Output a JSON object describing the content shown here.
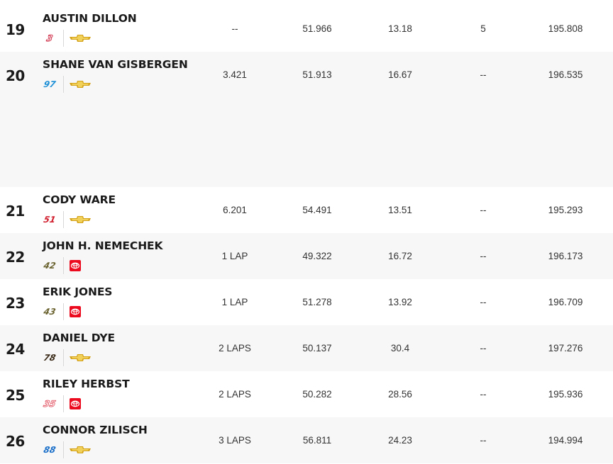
{
  "colors": {
    "alt_row": "#f7f7f7",
    "chevrolet": "#d4a21a",
    "toyota": "#eb0a1e"
  },
  "rows_top": [
    {
      "pos": "19",
      "driver": "AUSTIN DILLON",
      "car": "3",
      "car_color": "#c8102e",
      "car_outline": true,
      "mfr": "chevrolet-icon",
      "interval": "--",
      "lap_time": "51.966",
      "c3": "13.18",
      "c4": "5",
      "speed": "195.808",
      "alt": false
    },
    {
      "pos": "20",
      "driver": "SHANE VAN GISBERGEN",
      "car": "97",
      "car_color": "#1e90d6",
      "car_outline": false,
      "mfr": "chevrolet-icon",
      "interval": "3.421",
      "lap_time": "51.913",
      "c3": "16.67",
      "c4": "--",
      "speed": "196.535",
      "alt": true
    }
  ],
  "rows_bottom": [
    {
      "pos": "21",
      "driver": "CODY WARE",
      "car": "51",
      "car_color": "#d01a2a",
      "car_outline": false,
      "mfr": "chevrolet-icon",
      "interval": "6.201",
      "lap_time": "54.491",
      "c3": "13.51",
      "c4": "--",
      "speed": "195.293",
      "alt": false
    },
    {
      "pos": "22",
      "driver": "JOHN H. NEMECHEK",
      "car": "42",
      "car_color": "#6b6330",
      "car_outline": false,
      "mfr": "toyota-icon",
      "interval": "1 LAP",
      "lap_time": "49.322",
      "c3": "16.72",
      "c4": "--",
      "speed": "196.173",
      "alt": true
    },
    {
      "pos": "23",
      "driver": "ERIK JONES",
      "car": "43",
      "car_color": "#6b6330",
      "car_outline": false,
      "mfr": "toyota-icon",
      "interval": "1 LAP",
      "lap_time": "51.278",
      "c3": "13.92",
      "c4": "--",
      "speed": "196.709",
      "alt": false
    },
    {
      "pos": "24",
      "driver": "DANIEL DYE",
      "car": "78",
      "car_color": "#3a2a18",
      "car_outline": false,
      "mfr": "chevrolet-icon",
      "interval": "2 LAPS",
      "lap_time": "50.137",
      "c3": "30.4",
      "c4": "--",
      "speed": "197.276",
      "alt": true
    },
    {
      "pos": "25",
      "driver": "RILEY HERBST",
      "car": "35",
      "car_color": "#e04a5a",
      "car_outline": true,
      "mfr": "toyota-icon",
      "interval": "2 LAPS",
      "lap_time": "50.282",
      "c3": "28.56",
      "c4": "--",
      "speed": "195.936",
      "alt": false
    },
    {
      "pos": "26",
      "driver": "CONNOR ZILISCH",
      "car": "88",
      "car_color": "#1a6fc9",
      "car_outline": false,
      "mfr": "chevrolet-icon",
      "interval": "3 LAPS",
      "lap_time": "56.811",
      "c3": "24.23",
      "c4": "--",
      "speed": "194.994",
      "alt": true
    }
  ]
}
